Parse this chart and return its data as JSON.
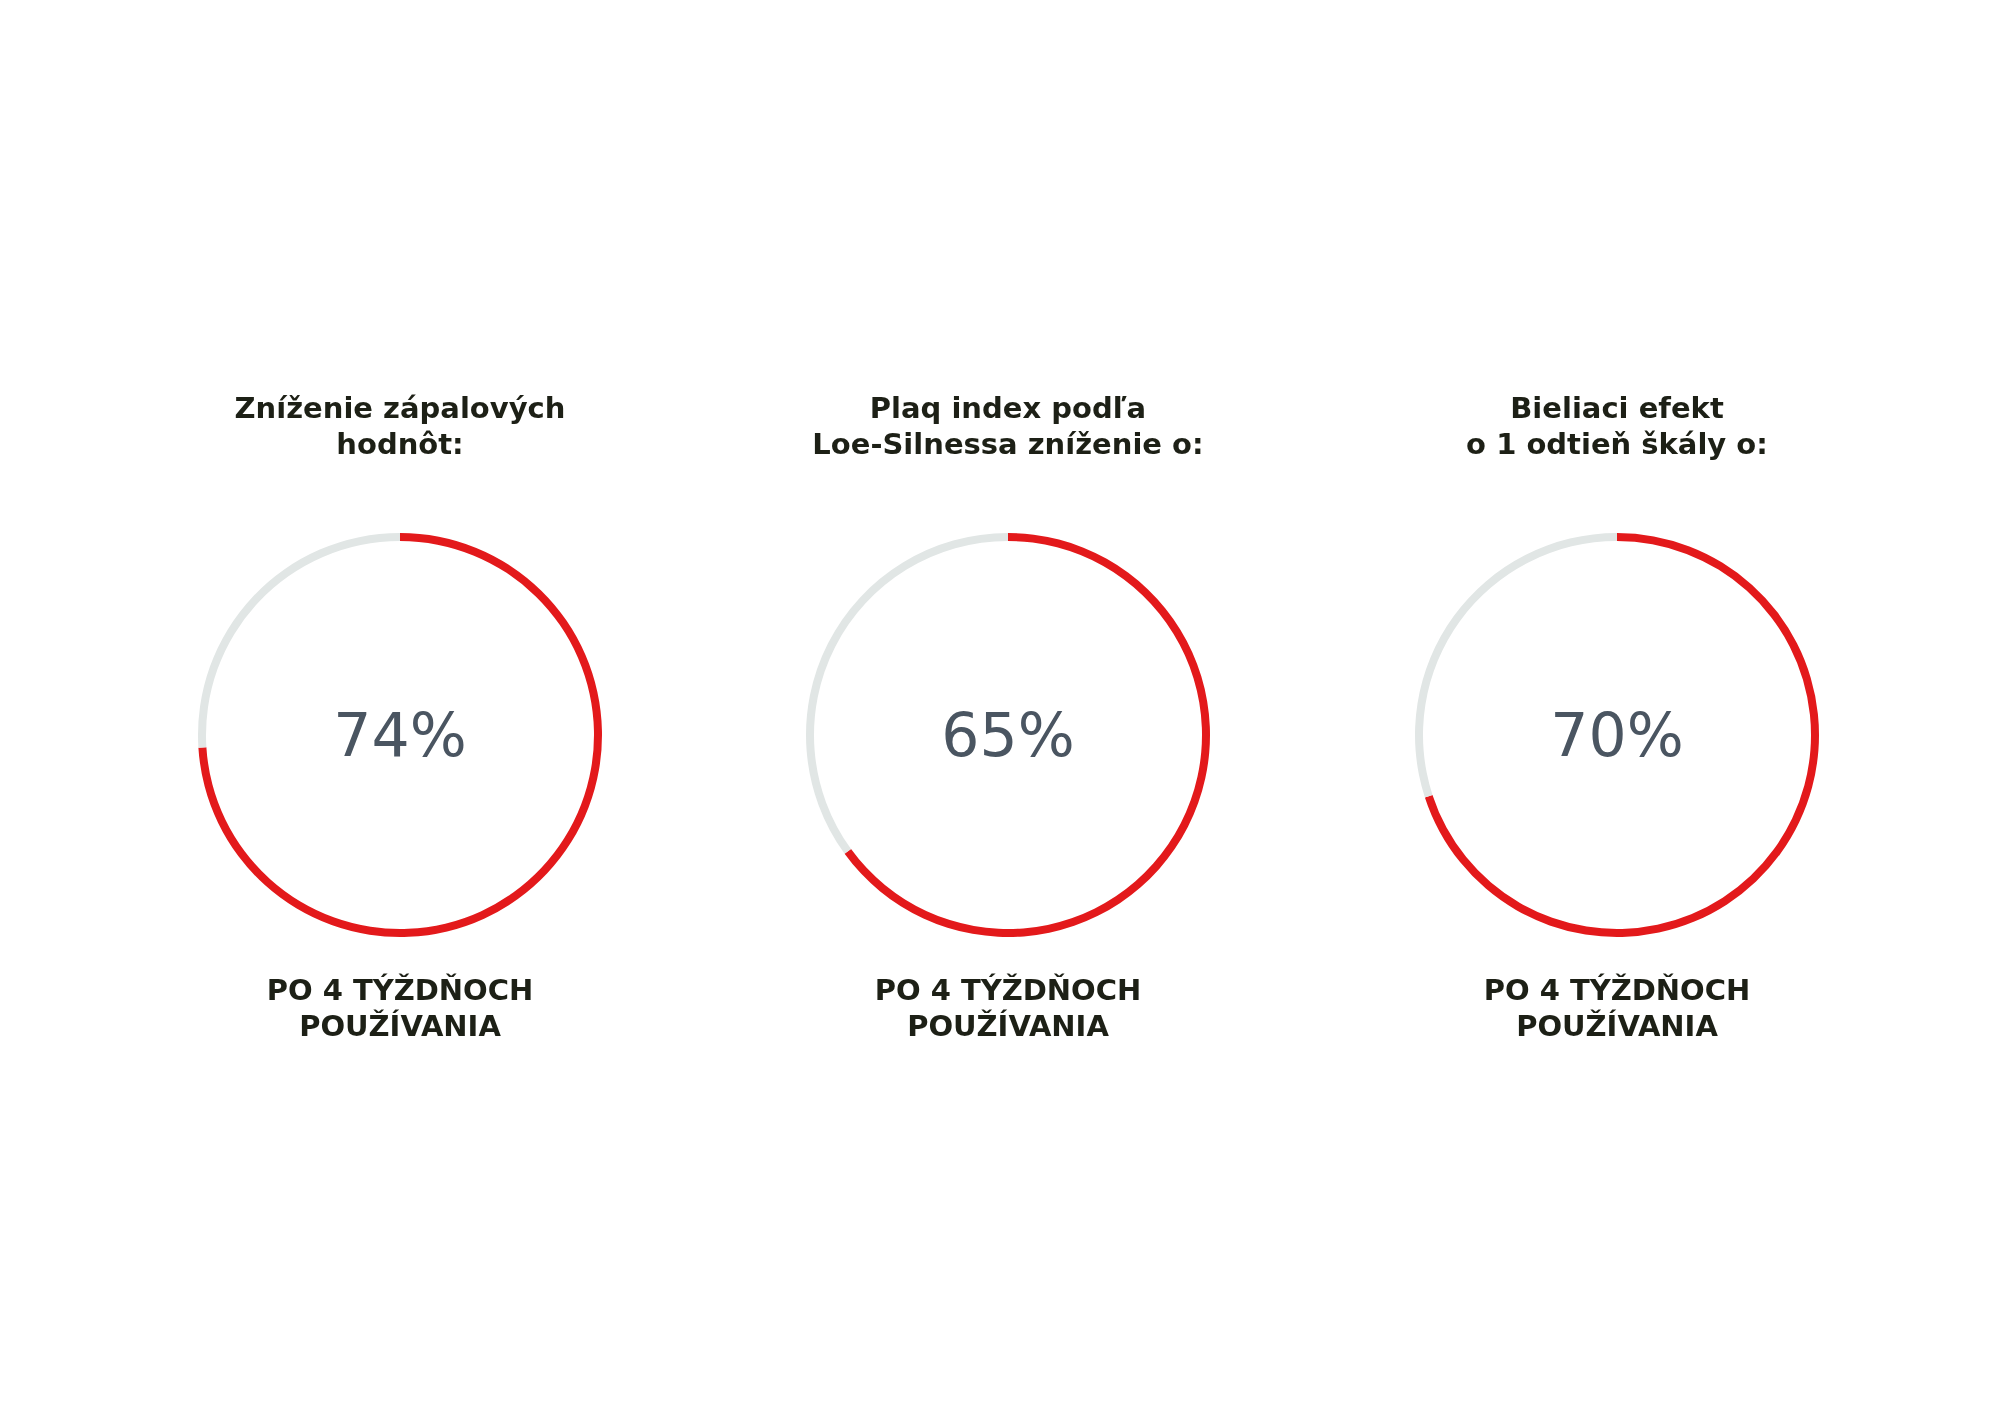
{
  "chart_data": [
    {
      "type": "donut",
      "title": "Zníženie zápalových\nhodnôt:",
      "categories": [
        null,
        null
      ],
      "values": [
        74,
        26
      ],
      "colors": [
        "#e3191b",
        "#e1e6e5"
      ],
      "value_labels": [
        "74%",
        null
      ],
      "annotations": [
        "PO 4 TÝŽDŇOCH\nPOUŽÍVANIA"
      ]
    },
    {
      "type": "donut",
      "title": "Plaq index podľa\nLoe-Silnessa zníženie o:",
      "categories": [
        null,
        null
      ],
      "values": [
        65,
        35
      ],
      "colors": [
        "#e3191b",
        "#e1e6e5"
      ],
      "value_labels": [
        "65%",
        null
      ],
      "annotations": [
        "PO 4 TÝŽDŇOCH\nPOUŽÍVANIA"
      ]
    },
    {
      "type": "donut",
      "title": "Bieliaci efekt\no 1 odtieň škály o:",
      "categories": [
        null,
        null
      ],
      "values": [
        70,
        30
      ],
      "colors": [
        "#e3191b",
        "#e1e6e5"
      ],
      "value_labels": [
        "70%",
        null
      ],
      "annotations": [
        "PO 4 TÝŽDŇOCH\nPOUŽÍVANIA"
      ]
    }
  ]
}
